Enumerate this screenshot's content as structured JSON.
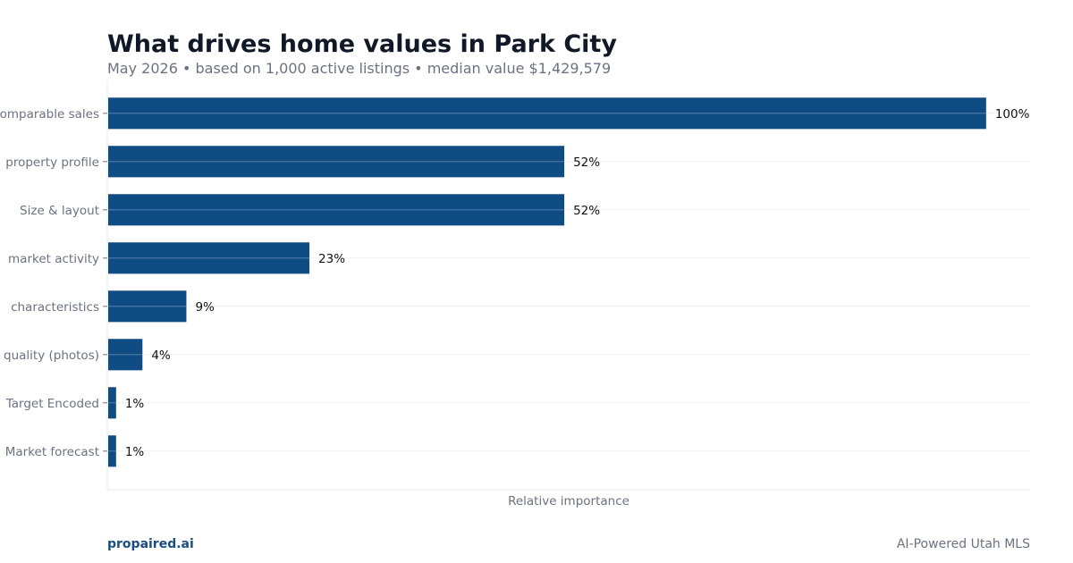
{
  "header": {
    "title": "What drives home values in Park City",
    "subtitle": "May 2026 • based on 1,000 active listings • median value $1,429,579"
  },
  "footer": {
    "brand": "propaired.ai",
    "tagline": "AI-Powered Utah MLS"
  },
  "colors": {
    "bar": "#0f4c84",
    "brand": "#1a4d82"
  },
  "chart_data": {
    "type": "bar",
    "orientation": "horizontal",
    "categories": [
      "Comparable sales",
      "property profile",
      "Size & layout",
      "market activity",
      "characteristics",
      "quality (photos)",
      "Target Encoded",
      "Market forecast"
    ],
    "values": [
      100,
      52,
      52,
      23,
      9,
      4,
      1,
      1
    ],
    "data_labels": [
      "100%",
      "52%",
      "52%",
      "23%",
      "9%",
      "4%",
      "1%",
      "1%"
    ],
    "xlabel": "Relative importance",
    "ylabel": "",
    "xlim": [
      0,
      105
    ],
    "grid": true
  }
}
